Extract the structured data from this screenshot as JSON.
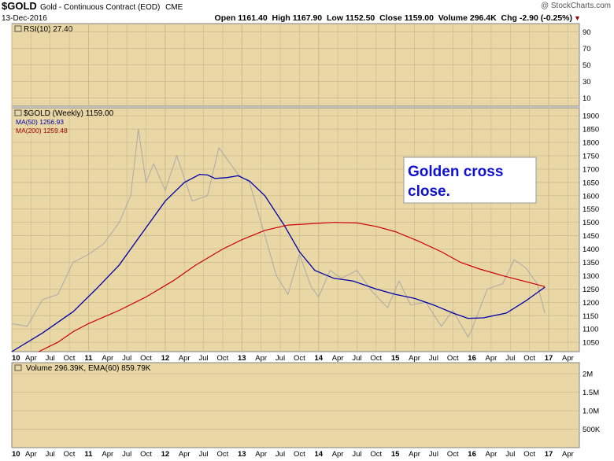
{
  "header": {
    "symbol": "$GOLD",
    "name": "Gold - Continuous Contract (EOD)",
    "exchange": "CME",
    "date": "13-Dec-2016",
    "watermark": "@ StockCharts.com",
    "ohlc": "Open 1161.40  High 1167.90  Low 1152.50  Close 1159.00  Volume 296.4K  Chg -2.90 (-0.25%)",
    "chg_arrow": "▼"
  },
  "rsi_panel": {
    "label": "RSI(10) 27.40",
    "ticks": [
      "90",
      "70",
      "50",
      "30",
      "10"
    ]
  },
  "price_panel": {
    "label": "$GOLD (Weekly) 1159.00",
    "ma50_label": "MA(50) 1256.93",
    "ma200_label": "MA(200) 1259.48",
    "ticks": [
      "1900",
      "1850",
      "1800",
      "1750",
      "1700",
      "1650",
      "1600",
      "1550",
      "1500",
      "1450",
      "1400",
      "1350",
      "1300",
      "1250",
      "1200",
      "1150",
      "1100",
      "1050"
    ],
    "annotation": [
      "Golden cross",
      "close."
    ]
  },
  "volume_panel": {
    "label": "Volume 296.39K, EMA(60) 859.79K",
    "ticks": [
      "2M",
      "1.5M",
      "1.0M",
      "500K"
    ]
  },
  "x_axis": {
    "labels": [
      "10",
      "Apr",
      "Jul",
      "Oct",
      "11",
      "Apr",
      "Jul",
      "Oct",
      "12",
      "Apr",
      "Jul",
      "Oct",
      "13",
      "Apr",
      "Jul",
      "Oct",
      "14",
      "Apr",
      "Jul",
      "Oct",
      "15",
      "Apr",
      "Jul",
      "Oct",
      "16",
      "Apr",
      "Jul",
      "Oct",
      "17",
      "Apr"
    ]
  },
  "colors": {
    "panel_bg": "#e9d8a6",
    "grid": "#c8b88a",
    "price": "#a9a9a9",
    "ma50": "#0000aa",
    "ma200": "#cc0000",
    "annotation_text": "#1010d0",
    "label_red": "#990000"
  },
  "chart_data": {
    "type": "line",
    "title": "$GOLD (Weekly) 1159.00",
    "x_unit": "year",
    "xlim": [
      2010.0,
      2017.4
    ],
    "ylim": [
      1015,
      1930
    ],
    "series": [
      {
        "name": "$GOLD (Weekly)",
        "points": [
          [
            2010.0,
            1120
          ],
          [
            2010.2,
            1110
          ],
          [
            2010.4,
            1210
          ],
          [
            2010.6,
            1230
          ],
          [
            2010.8,
            1350
          ],
          [
            2011.0,
            1380
          ],
          [
            2011.2,
            1420
          ],
          [
            2011.4,
            1500
          ],
          [
            2011.55,
            1600
          ],
          [
            2011.65,
            1850
          ],
          [
            2011.75,
            1650
          ],
          [
            2011.85,
            1720
          ],
          [
            2012.0,
            1620
          ],
          [
            2012.15,
            1750
          ],
          [
            2012.35,
            1580
          ],
          [
            2012.55,
            1600
          ],
          [
            2012.7,
            1780
          ],
          [
            2012.8,
            1740
          ],
          [
            2012.95,
            1680
          ],
          [
            2013.1,
            1650
          ],
          [
            2013.3,
            1450
          ],
          [
            2013.45,
            1300
          ],
          [
            2013.6,
            1230
          ],
          [
            2013.75,
            1380
          ],
          [
            2013.9,
            1260
          ],
          [
            2014.0,
            1220
          ],
          [
            2014.15,
            1320
          ],
          [
            2014.3,
            1290
          ],
          [
            2014.5,
            1320
          ],
          [
            2014.7,
            1240
          ],
          [
            2014.9,
            1180
          ],
          [
            2015.05,
            1280
          ],
          [
            2015.2,
            1190
          ],
          [
            2015.4,
            1200
          ],
          [
            2015.6,
            1110
          ],
          [
            2015.75,
            1170
          ],
          [
            2015.95,
            1070
          ],
          [
            2016.0,
            1100
          ],
          [
            2016.2,
            1250
          ],
          [
            2016.4,
            1270
          ],
          [
            2016.55,
            1360
          ],
          [
            2016.7,
            1330
          ],
          [
            2016.85,
            1270
          ],
          [
            2016.95,
            1160
          ]
        ]
      },
      {
        "name": "MA(50)",
        "points": [
          [
            2010.0,
            1015
          ],
          [
            2010.4,
            1085
          ],
          [
            2010.8,
            1165
          ],
          [
            2011.1,
            1250
          ],
          [
            2011.4,
            1340
          ],
          [
            2011.7,
            1460
          ],
          [
            2012.0,
            1580
          ],
          [
            2012.25,
            1650
          ],
          [
            2012.45,
            1680
          ],
          [
            2012.55,
            1678
          ],
          [
            2012.65,
            1665
          ],
          [
            2012.8,
            1668
          ],
          [
            2012.95,
            1675
          ],
          [
            2013.1,
            1655
          ],
          [
            2013.3,
            1600
          ],
          [
            2013.55,
            1490
          ],
          [
            2013.75,
            1390
          ],
          [
            2013.95,
            1320
          ],
          [
            2014.2,
            1290
          ],
          [
            2014.45,
            1280
          ],
          [
            2014.75,
            1250
          ],
          [
            2015.0,
            1230
          ],
          [
            2015.25,
            1215
          ],
          [
            2015.5,
            1190
          ],
          [
            2015.75,
            1160
          ],
          [
            2015.95,
            1140
          ],
          [
            2016.15,
            1142
          ],
          [
            2016.45,
            1160
          ],
          [
            2016.7,
            1205
          ],
          [
            2016.95,
            1257
          ]
        ]
      },
      {
        "name": "MA(200)",
        "points": [
          [
            2010.35,
            1015
          ],
          [
            2010.6,
            1050
          ],
          [
            2010.8,
            1090
          ],
          [
            2011.0,
            1120
          ],
          [
            2011.4,
            1170
          ],
          [
            2011.75,
            1220
          ],
          [
            2012.1,
            1280
          ],
          [
            2012.4,
            1340
          ],
          [
            2012.75,
            1400
          ],
          [
            2013.0,
            1435
          ],
          [
            2013.3,
            1470
          ],
          [
            2013.6,
            1490
          ],
          [
            2013.9,
            1495
          ],
          [
            2014.2,
            1500
          ],
          [
            2014.5,
            1498
          ],
          [
            2014.75,
            1485
          ],
          [
            2015.0,
            1465
          ],
          [
            2015.3,
            1430
          ],
          [
            2015.6,
            1390
          ],
          [
            2015.85,
            1350
          ],
          [
            2016.1,
            1325
          ],
          [
            2016.4,
            1300
          ],
          [
            2016.7,
            1278
          ],
          [
            2016.95,
            1259
          ]
        ]
      }
    ]
  }
}
